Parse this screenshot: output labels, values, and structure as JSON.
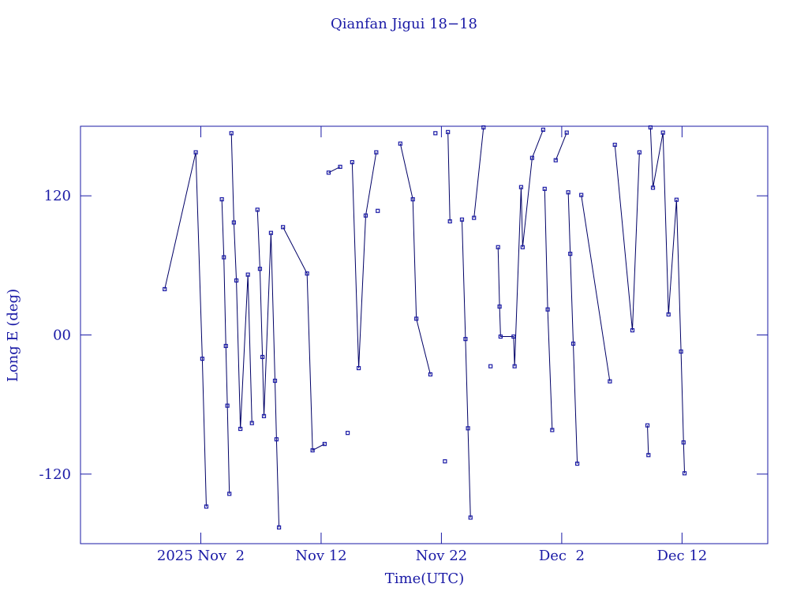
{
  "chart_data": {
    "type": "line",
    "title": "Qianfan Jigui 18−18",
    "x_label": "Time(UTC)",
    "y_label": "Long E (deg)",
    "xlim": [
      "2025-10-23T00:00",
      "2025-12-19T03:00"
    ],
    "ylim": [
      -180,
      180
    ],
    "xticks": [
      {
        "value": "2025-11-02T00:00",
        "label": "2025 Nov  2"
      },
      {
        "value": "2025-11-12T00:00",
        "label": "Nov 12"
      },
      {
        "value": "2025-11-22T00:00",
        "label": "Nov 22"
      },
      {
        "value": "2025-12-02T00:00",
        "label": "Dec  2"
      },
      {
        "value": "2025-12-12T00:00",
        "label": "Dec 12"
      }
    ],
    "yticks": [
      -120,
      {
        "value": 0,
        "label": "00"
      },
      120
    ],
    "x": [
      "2025-10-30T00:00",
      "2025-11-01T14:00",
      "2025-11-02T03:00",
      "2025-11-02T11:00",
      null,
      "2025-11-03T18:00",
      "2025-11-03T22:00",
      "2025-11-04T02:00",
      "2025-11-04T05:00",
      "2025-11-04T09:00",
      null,
      "2025-11-04T13:00",
      "2025-11-04T18:00",
      "2025-11-04T23:00",
      "2025-11-05T07:00",
      "2025-11-05T22:00",
      "2025-11-06T06:00",
      null,
      "2025-11-06T17:00",
      "2025-11-06T22:00",
      "2025-11-07T03:00",
      "2025-11-07T06:00",
      "2025-11-07T20:00",
      "2025-11-08T04:00",
      "2025-11-08T07:00",
      "2025-11-08T12:00",
      null,
      "2025-11-08T20:00",
      "2025-11-10T20:00",
      "2025-11-11T07:00",
      "2025-11-12T07:00",
      null,
      "2025-11-12T15:00",
      "2025-11-13T14:00",
      null,
      "2025-11-14T05:00",
      null,
      "2025-11-14T14:00",
      "2025-11-15T03:00",
      "2025-11-15T17:00",
      "2025-11-16T14:00",
      null,
      "2025-11-16T17:00",
      null,
      "2025-11-18T14:00",
      "2025-11-19T15:00",
      "2025-11-19T22:00",
      "2025-11-21T02:00",
      null,
      "2025-11-21T12:00",
      null,
      "2025-11-22T07:00",
      null,
      "2025-11-22T13:00",
      "2025-11-22T17:00",
      null,
      "2025-11-23T17:00",
      "2025-11-24T00:00",
      "2025-11-24T05:00",
      "2025-11-24T10:00",
      null,
      "2025-11-24T17:00",
      "2025-11-25T12:00",
      null,
      "2025-11-26T02:00",
      null,
      "2025-11-26T17:00",
      "2025-11-26T20:00",
      "2025-11-26T22:00",
      "2025-11-28T00:00",
      "2025-11-28T02:00",
      "2025-11-28T15:00",
      "2025-11-28T18:00",
      "2025-11-29T13:00",
      "2025-11-30T11:00",
      null,
      "2025-11-30T14:00",
      "2025-11-30T20:00",
      "2025-12-01T05:00",
      null,
      "2025-12-01T12:00",
      "2025-12-02T10:00",
      null,
      "2025-12-02T13:00",
      "2025-12-02T17:00",
      "2025-12-02T23:00",
      "2025-12-03T07:00",
      null,
      "2025-12-03T15:00",
      "2025-12-06T00:00",
      null,
      "2025-12-06T10:00",
      "2025-12-07T21:00",
      "2025-12-08T11:00",
      null,
      "2025-12-09T03:00",
      "2025-12-09T05:00",
      null,
      "2025-12-09T09:00",
      "2025-12-09T14:00",
      "2025-12-10T10:00",
      "2025-12-10T21:00",
      "2025-12-11T13:00",
      "2025-12-11T22:00",
      "2025-12-12T03:00",
      "2025-12-12T05:00"
    ],
    "series": [
      {
        "name": "Long E",
        "color": "#1a1aa6",
        "line_color": "#000066",
        "values": [
          39.5,
          157.5,
          -20.5,
          -148,
          null,
          117,
          67,
          -9.5,
          -61,
          -137,
          null,
          174,
          97,
          47,
          -81,
          52,
          -76,
          null,
          108,
          57,
          -19,
          -70,
          88,
          -39.5,
          -90,
          -166,
          null,
          93,
          53,
          -99.5,
          -94,
          null,
          140,
          145,
          null,
          -84.5,
          null,
          149,
          -28.6,
          103,
          157.5,
          null,
          107,
          null,
          165,
          117,
          14,
          -34,
          null,
          174,
          null,
          -109,
          null,
          175,
          98,
          null,
          99.5,
          -3.5,
          -80.5,
          -157.5,
          null,
          101,
          179,
          null,
          -27,
          null,
          75.7,
          24.5,
          -1.4,
          -1.4,
          -27,
          127.5,
          75.7,
          152.7,
          177,
          null,
          126,
          22,
          -82,
          null,
          150.7,
          174.5,
          null,
          123,
          70,
          -7.5,
          -111,
          null,
          120.7,
          -40,
          null,
          164,
          4,
          157.5,
          null,
          -78,
          -103.6,
          null,
          179,
          127,
          174.5,
          17.7,
          116.6,
          -14.3,
          -92.7,
          -119.3
        ]
      }
    ]
  }
}
